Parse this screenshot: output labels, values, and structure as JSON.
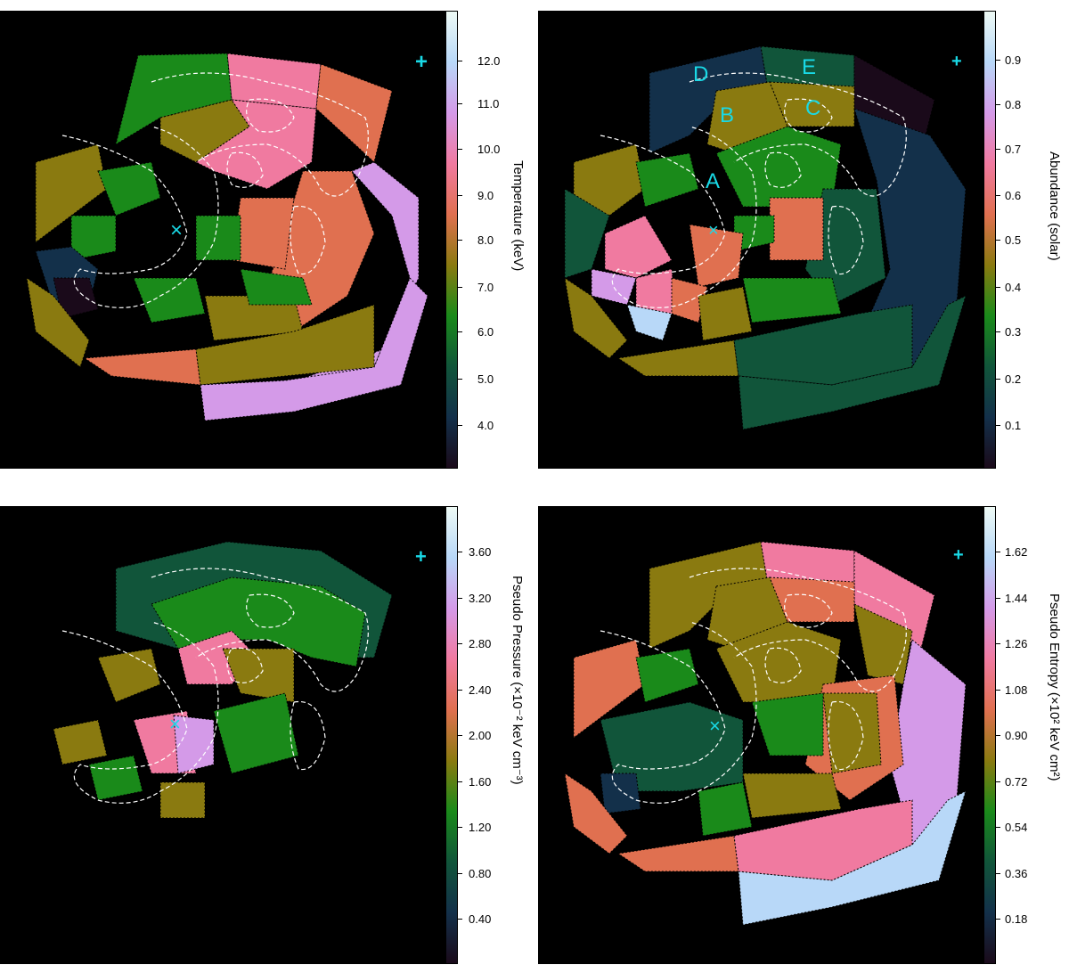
{
  "panels": [
    {
      "id": "temperature",
      "colorbar": {
        "label": "Temperature (keV)",
        "ticks": [
          "12.0",
          "11.0",
          "10.0",
          "9.0",
          "8.0",
          "7.0",
          "6.0",
          "5.0",
          "4.0"
        ]
      },
      "markers": {
        "plus": "+",
        "cross": "×"
      },
      "region_labels": []
    },
    {
      "id": "abundance",
      "colorbar": {
        "label": "Abundance (solar)",
        "ticks": [
          "0.9",
          "0.8",
          "0.7",
          "0.6",
          "0.5",
          "0.4",
          "0.3",
          "0.2",
          "0.1"
        ]
      },
      "markers": {
        "plus": "+",
        "cross": "×"
      },
      "region_labels": [
        "D",
        "E",
        "B",
        "C",
        "A"
      ]
    },
    {
      "id": "pressure",
      "colorbar": {
        "label": "Pseudo Pressure (×10⁻² keV cm⁻³)",
        "ticks": [
          "3.60",
          "3.20",
          "2.80",
          "2.40",
          "2.00",
          "1.60",
          "1.20",
          "0.80",
          "0.40"
        ]
      },
      "markers": {
        "plus": "+",
        "cross": "×"
      },
      "region_labels": []
    },
    {
      "id": "entropy",
      "colorbar": {
        "label": "Pseudo Entropy (×10² keV cm²)",
        "ticks": [
          "1.62",
          "1.44",
          "1.26",
          "1.08",
          "0.90",
          "0.72",
          "0.54",
          "0.36",
          "0.18"
        ]
      },
      "markers": {
        "plus": "+",
        "cross": "×"
      },
      "region_labels": []
    }
  ],
  "colors": {
    "background": "#000000",
    "marker": "#19d9e6",
    "contour": "#ffffff",
    "colormap": [
      "#1a0a1a",
      "#13304a",
      "#11553a",
      "#1a8a1a",
      "#8a7a10",
      "#e07050",
      "#f07aa0",
      "#d49ae8",
      "#b8d8f8",
      "#eefaf5"
    ]
  }
}
